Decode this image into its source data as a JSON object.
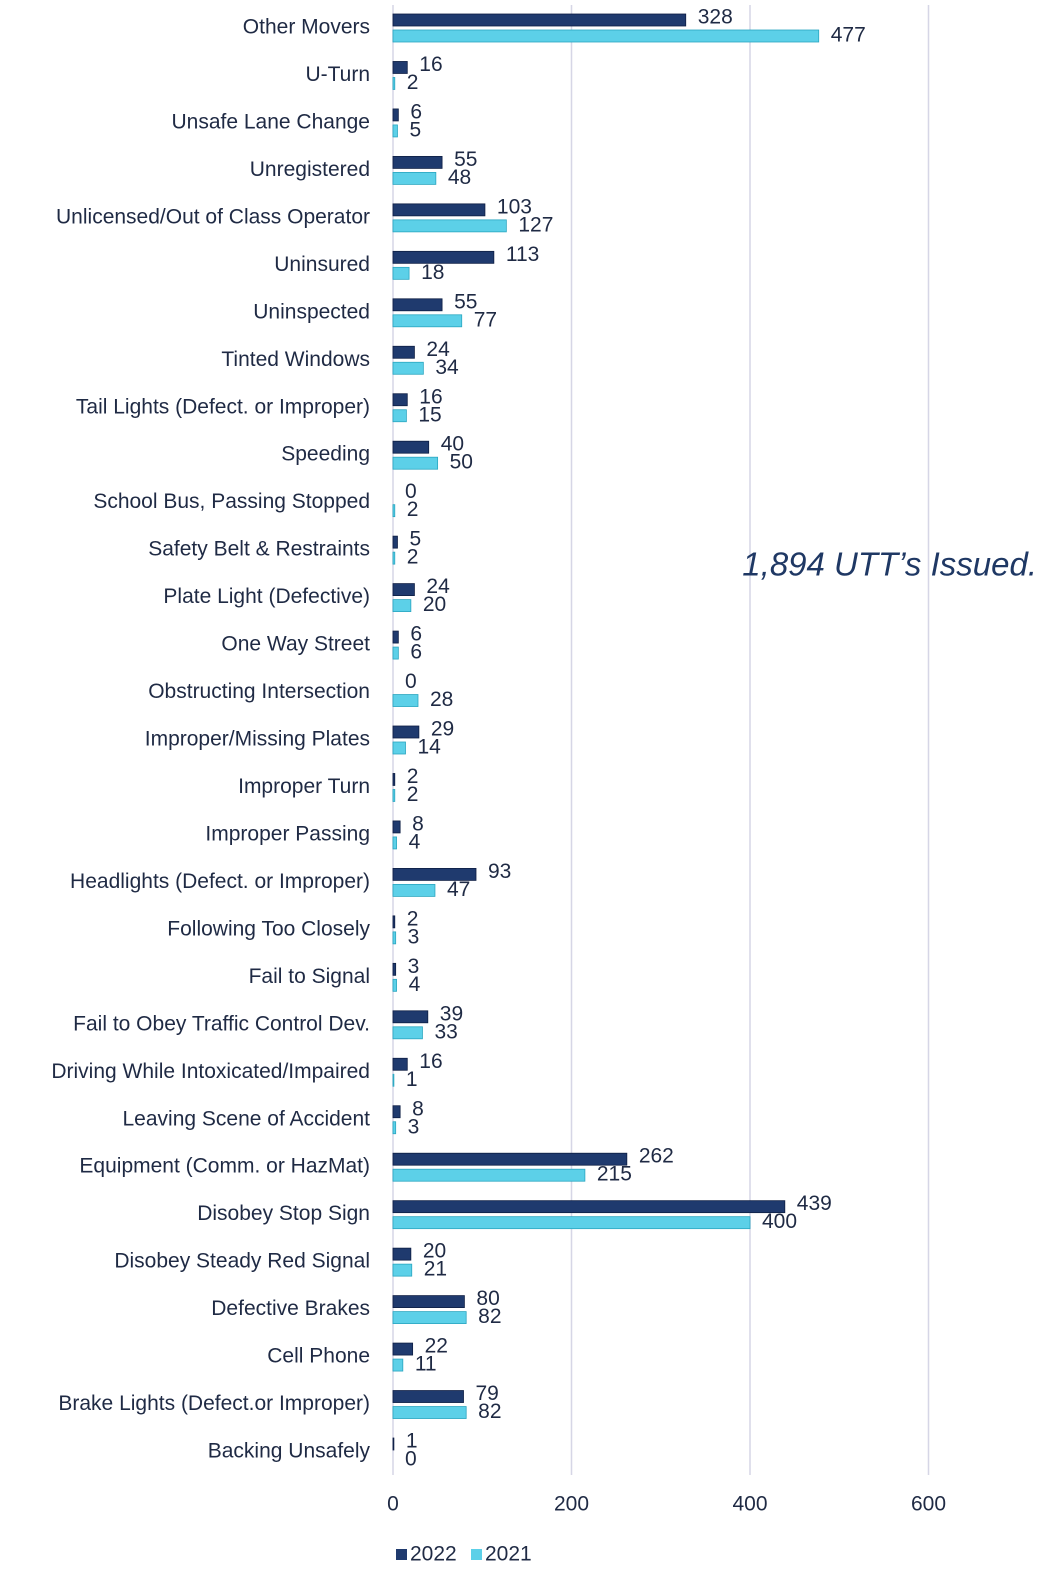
{
  "chart_data": {
    "type": "hbar",
    "categories": [
      "Other Movers",
      "U-Turn",
      "Unsafe Lane Change",
      "Unregistered",
      "Unlicensed/Out of Class Operator",
      "Uninsured",
      "Uninspected",
      "Tinted Windows",
      "Tail Lights (Defect. or Improper)",
      "Speeding",
      "School Bus, Passing Stopped",
      "Safety Belt & Restraints",
      "Plate Light (Defective)",
      "One Way Street",
      "Obstructing Intersection",
      "Improper/Missing Plates",
      "Improper Turn",
      "Improper Passing",
      "Headlights (Defect. or Improper)",
      "Following Too Closely",
      "Fail to Signal",
      "Fail to Obey Traffic Control Dev.",
      "Driving While Intoxicated/Impaired",
      "Leaving Scene of Accident",
      "Equipment (Comm. or HazMat)",
      "Disobey Stop Sign",
      "Disobey Steady Red Signal",
      "Defective Brakes",
      "Cell Phone",
      "Brake Lights (Defect.or Improper)",
      "Backing Unsafely"
    ],
    "series": [
      {
        "name": "2022",
        "color": "#1f3a6e",
        "values": [
          328,
          16,
          6,
          55,
          103,
          113,
          55,
          24,
          16,
          40,
          0,
          5,
          24,
          6,
          0,
          29,
          2,
          8,
          93,
          2,
          3,
          39,
          16,
          8,
          262,
          439,
          20,
          80,
          22,
          79,
          1
        ]
      },
      {
        "name": "2021",
        "color": "#5cd0e8",
        "values": [
          477,
          2,
          5,
          48,
          127,
          18,
          77,
          34,
          15,
          50,
          2,
          2,
          20,
          6,
          28,
          14,
          2,
          4,
          47,
          3,
          4,
          33,
          1,
          3,
          215,
          400,
          21,
          82,
          11,
          82,
          0
        ]
      }
    ],
    "xlim": [
      0,
      700
    ],
    "xticks": [
      0,
      200,
      400,
      600
    ],
    "grid": true,
    "annotation": "1,894 UTT’s Issued.",
    "legend": "bottom"
  }
}
